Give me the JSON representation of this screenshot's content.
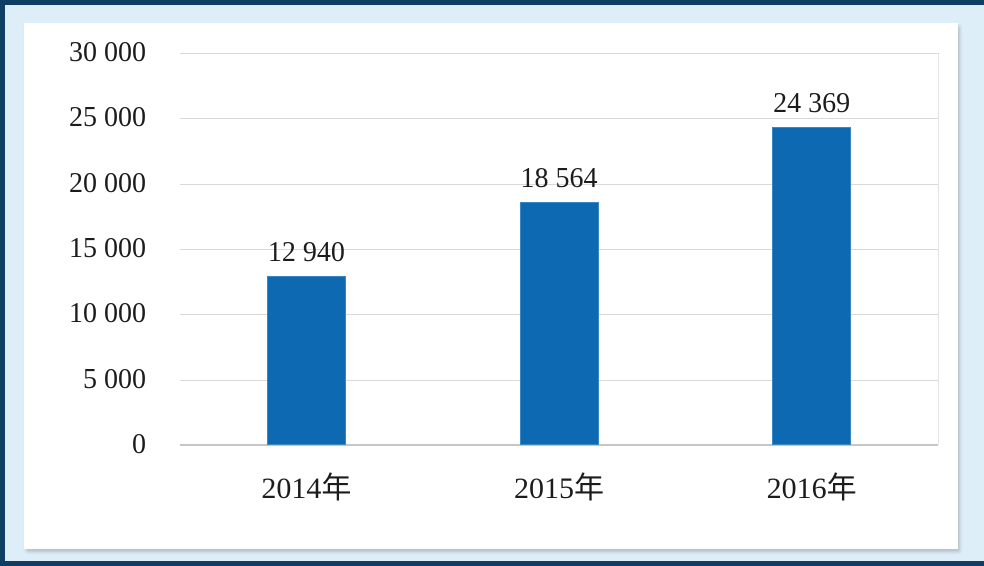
{
  "frame": {
    "border_color": "#0e3e63",
    "mat_color": "#ddeef9",
    "panel_color": "#ffffff"
  },
  "chart_data": {
    "type": "bar",
    "title": "",
    "xlabel": "",
    "ylabel": "",
    "legend": "none",
    "grid": true,
    "ylim": [
      0,
      30000
    ],
    "y_tick_step": 5000,
    "y_ticks": [
      {
        "value": 30000,
        "label": "30 000"
      },
      {
        "value": 25000,
        "label": "25 000"
      },
      {
        "value": 20000,
        "label": "20 000"
      },
      {
        "value": 15000,
        "label": "15 000"
      },
      {
        "value": 10000,
        "label": "10 000"
      },
      {
        "value": 5000,
        "label": "5 000"
      },
      {
        "value": 0,
        "label": "0"
      }
    ],
    "categories": [
      "2014年",
      "2015年",
      "2016年"
    ],
    "values": [
      12940,
      18564,
      24369
    ],
    "value_labels": [
      "12 940",
      "18 564",
      "24 369"
    ],
    "colors": {
      "bar": "#0d6ab2",
      "bar_edge": "#3c86c2",
      "gridline": "#d9d9d9",
      "axis_line": "#c6c6c6",
      "text": "#1c1c1c"
    }
  }
}
